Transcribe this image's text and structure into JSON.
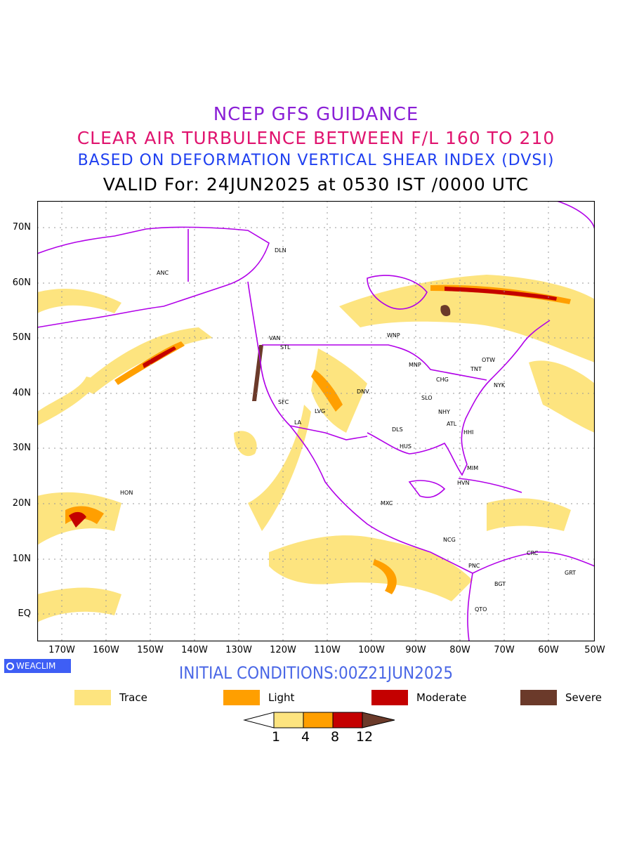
{
  "header": {
    "title_line1": "NCEP GFS GUIDANCE",
    "title_line2": "CLEAR AIR TURBULENCE BETWEEN F/L 160 TO 210",
    "title_line3": "BASED ON DEFORMATION VERTICAL SHEAR INDEX (DVSI)",
    "title_line4": "VALID For: 24JUN2025 at 0530 IST /0000 UTC"
  },
  "map": {
    "lat_ticks": [
      "70N",
      "60N",
      "50N",
      "40N",
      "30N",
      "20N",
      "10N",
      "EQ"
    ],
    "lon_ticks": [
      "170W",
      "160W",
      "150W",
      "140W",
      "130W",
      "120W",
      "110W",
      "100W",
      "90W",
      "80W",
      "70W",
      "60W",
      "50W"
    ],
    "stations": [
      "DLN",
      "ANC",
      "VAN",
      "STL",
      "WNP",
      "OTW",
      "MNP",
      "TNT",
      "CHG",
      "NYK",
      "SFC",
      "DNV",
      "LVG",
      "SLO",
      "NHY",
      "LA",
      "ATL",
      "DLS",
      "HHI",
      "HUS",
      "MIM",
      "HON",
      "HVN",
      "MXC",
      "NCG",
      "CRC",
      "PNC",
      "GRT",
      "BGT",
      "QTO"
    ],
    "colors": {
      "coastline": "#b100e8",
      "trace": "#fde47f",
      "light": "#ff9f00",
      "moderate": "#c40000",
      "severe": "#6b3a2a"
    }
  },
  "footer": {
    "logo": "WEACLIM",
    "initial_conditions": "INITIAL CONDITIONS:00Z21JUN2025"
  },
  "legend": {
    "items": [
      {
        "label": "Trace",
        "color": "#fde47f"
      },
      {
        "label": "Light",
        "color": "#ff9f00"
      },
      {
        "label": "Moderate",
        "color": "#c40000"
      },
      {
        "label": "Severe",
        "color": "#6b3a2a"
      }
    ],
    "colorbar_ticks": [
      "1",
      "4",
      "8",
      "12"
    ]
  }
}
